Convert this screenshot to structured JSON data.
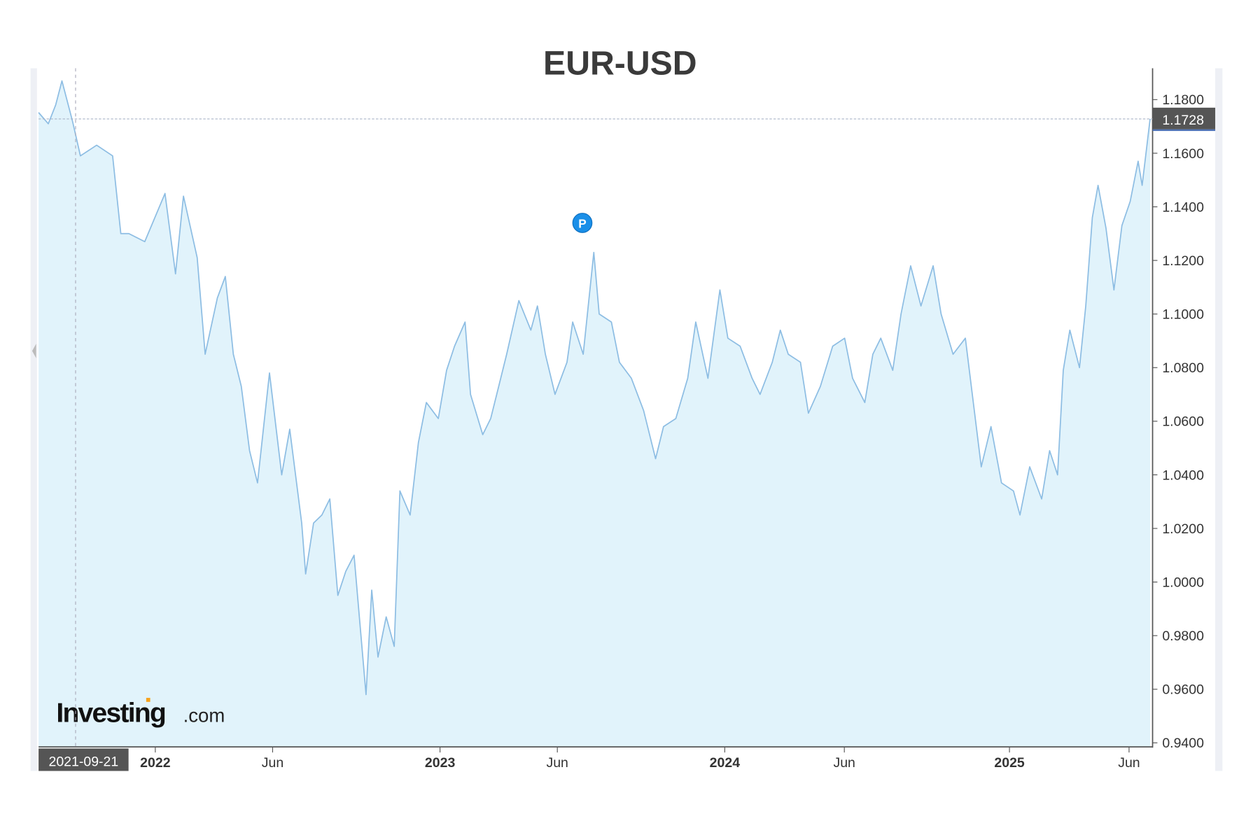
{
  "chart_data": {
    "type": "area",
    "title": "EUR-USD",
    "xlabel": "",
    "ylabel": "",
    "x_unit": "decimal year",
    "xlim": [
      2021.59,
      2025.497
    ],
    "ylim": [
      0.9385,
      1.1917
    ],
    "grid": false,
    "y_axis_position": "right",
    "y_ticks": [
      1.18,
      1.16,
      1.14,
      1.12,
      1.1,
      1.08,
      1.06,
      1.04,
      1.02,
      1.0,
      0.98,
      0.96,
      0.94
    ],
    "y_tick_labels": [
      "1.1800",
      "1.1600",
      "1.1400",
      "1.1200",
      "1.1000",
      "1.0800",
      "1.0600",
      "1.0400",
      "1.0200",
      "1.0000",
      "0.9800",
      "0.9600",
      "0.9400"
    ],
    "x_ticks": [
      {
        "t": 2022,
        "label": "2022",
        "year": true
      },
      {
        "t": 2022.412,
        "label": "Jun",
        "year": false
      },
      {
        "t": 2023,
        "label": "2023",
        "year": true
      },
      {
        "t": 2023.412,
        "label": "Jun",
        "year": false
      },
      {
        "t": 2024,
        "label": "2024",
        "year": true
      },
      {
        "t": 2024.42,
        "label": "Jun",
        "year": false
      },
      {
        "t": 2025,
        "label": "2025",
        "year": true
      },
      {
        "t": 2025.42,
        "label": "Jun",
        "year": false
      }
    ],
    "crosshair": {
      "date_label": "2021-09-21",
      "t": 2021.72,
      "price_label": "1.1728",
      "price": 1.1728
    },
    "marker": {
      "label": "P",
      "t": 2023.5,
      "value": 1.134
    },
    "watermark": {
      "brand": "Investing",
      "suffix": ".com"
    },
    "colors": {
      "line": "#8dbde3",
      "fill": "#e1f3fb",
      "marker": "#1a8fe8",
      "label_bg": "#555555",
      "label_accent": "#4a6fb5"
    },
    "series": [
      {
        "name": "EUR-USD",
        "points": [
          [
            2021.59,
            1.1752
          ],
          [
            2021.624,
            1.171
          ],
          [
            2021.65,
            1.178
          ],
          [
            2021.672,
            1.187
          ],
          [
            2021.709,
            1.172
          ],
          [
            2021.737,
            1.159
          ],
          [
            2021.794,
            1.163
          ],
          [
            2021.85,
            1.159
          ],
          [
            2021.879,
            1.13
          ],
          [
            2021.907,
            1.13
          ],
          [
            2021.963,
            1.127
          ],
          [
            2022.034,
            1.145
          ],
          [
            2022.071,
            1.115
          ],
          [
            2022.099,
            1.144
          ],
          [
            2022.147,
            1.121
          ],
          [
            2022.175,
            1.085
          ],
          [
            2022.218,
            1.106
          ],
          [
            2022.246,
            1.114
          ],
          [
            2022.274,
            1.085
          ],
          [
            2022.302,
            1.073
          ],
          [
            2022.331,
            1.049
          ],
          [
            2022.359,
            1.037
          ],
          [
            2022.401,
            1.078
          ],
          [
            2022.444,
            1.04
          ],
          [
            2022.472,
            1.057
          ],
          [
            2022.514,
            1.022
          ],
          [
            2022.528,
            1.003
          ],
          [
            2022.556,
            1.022
          ],
          [
            2022.585,
            1.025
          ],
          [
            2022.613,
            1.031
          ],
          [
            2022.641,
            0.995
          ],
          [
            2022.669,
            1.004
          ],
          [
            2022.698,
            1.01
          ],
          [
            2022.74,
            0.958
          ],
          [
            2022.76,
            0.997
          ],
          [
            2022.782,
            0.972
          ],
          [
            2022.811,
            0.987
          ],
          [
            2022.839,
            0.976
          ],
          [
            2022.859,
            1.034
          ],
          [
            2022.895,
            1.025
          ],
          [
            2022.924,
            1.052
          ],
          [
            2022.952,
            1.067
          ],
          [
            2022.994,
            1.061
          ],
          [
            2023.023,
            1.079
          ],
          [
            2023.051,
            1.088
          ],
          [
            2023.088,
            1.097
          ],
          [
            2023.107,
            1.07
          ],
          [
            2023.15,
            1.055
          ],
          [
            2023.178,
            1.061
          ],
          [
            2023.206,
            1.073
          ],
          [
            2023.234,
            1.085
          ],
          [
            2023.277,
            1.105
          ],
          [
            2023.319,
            1.094
          ],
          [
            2023.342,
            1.103
          ],
          [
            2023.37,
            1.085
          ],
          [
            2023.404,
            1.07
          ],
          [
            2023.446,
            1.082
          ],
          [
            2023.466,
            1.097
          ],
          [
            2023.503,
            1.085
          ],
          [
            2023.54,
            1.123
          ],
          [
            2023.559,
            1.1
          ],
          [
            2023.602,
            1.097
          ],
          [
            2023.63,
            1.082
          ],
          [
            2023.672,
            1.076
          ],
          [
            2023.715,
            1.064
          ],
          [
            2023.757,
            1.046
          ],
          [
            2023.785,
            1.058
          ],
          [
            2023.828,
            1.061
          ],
          [
            2023.87,
            1.076
          ],
          [
            2023.898,
            1.097
          ],
          [
            2023.941,
            1.076
          ],
          [
            2023.983,
            1.109
          ],
          [
            2024.011,
            1.091
          ],
          [
            2024.054,
            1.088
          ],
          [
            2024.096,
            1.076
          ],
          [
            2024.124,
            1.07
          ],
          [
            2024.167,
            1.082
          ],
          [
            2024.195,
            1.094
          ],
          [
            2024.223,
            1.085
          ],
          [
            2024.266,
            1.082
          ],
          [
            2024.294,
            1.063
          ],
          [
            2024.336,
            1.073
          ],
          [
            2024.379,
            1.088
          ],
          [
            2024.421,
            1.091
          ],
          [
            2024.449,
            1.076
          ],
          [
            2024.492,
            1.067
          ],
          [
            2024.52,
            1.085
          ],
          [
            2024.548,
            1.091
          ],
          [
            2024.59,
            1.079
          ],
          [
            2024.619,
            1.1
          ],
          [
            2024.653,
            1.118
          ],
          [
            2024.689,
            1.103
          ],
          [
            2024.732,
            1.118
          ],
          [
            2024.76,
            1.1
          ],
          [
            2024.802,
            1.085
          ],
          [
            2024.845,
            1.091
          ],
          [
            2024.873,
            1.067
          ],
          [
            2024.901,
            1.043
          ],
          [
            2024.935,
            1.058
          ],
          [
            2024.972,
            1.037
          ],
          [
            2025.014,
            1.034
          ],
          [
            2025.037,
            1.025
          ],
          [
            2025.071,
            1.043
          ],
          [
            2025.113,
            1.031
          ],
          [
            2025.141,
            1.049
          ],
          [
            2025.169,
            1.04
          ],
          [
            2025.189,
            1.079
          ],
          [
            2025.212,
            1.094
          ],
          [
            2025.246,
            1.08
          ],
          [
            2025.268,
            1.103
          ],
          [
            2025.291,
            1.136
          ],
          [
            2025.311,
            1.148
          ],
          [
            2025.339,
            1.132
          ],
          [
            2025.367,
            1.109
          ],
          [
            2025.395,
            1.133
          ],
          [
            2025.424,
            1.142
          ],
          [
            2025.452,
            1.157
          ],
          [
            2025.466,
            1.148
          ],
          [
            2025.494,
            1.1728
          ]
        ]
      }
    ]
  }
}
